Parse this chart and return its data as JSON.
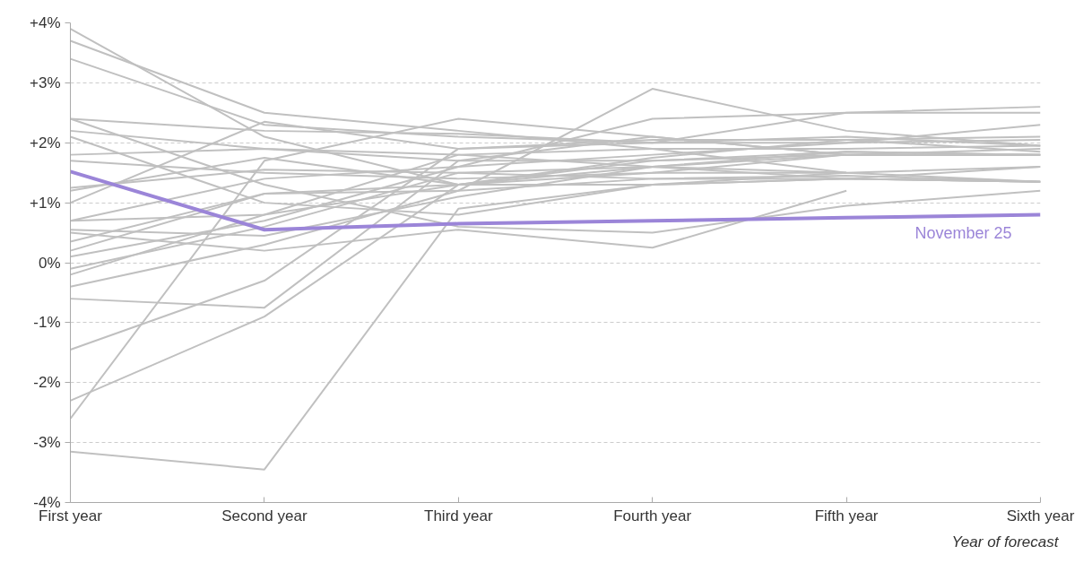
{
  "chart_data": {
    "type": "line",
    "xlabel": "Year of forecast",
    "categories": [
      "First year",
      "Second year",
      "Third year",
      "Fourth year",
      "Fifth year",
      "Sixth year"
    ],
    "ylim": [
      -4,
      4
    ],
    "yticks": [
      {
        "value": 4,
        "label": "+4%"
      },
      {
        "value": 3,
        "label": "+3%"
      },
      {
        "value": 2,
        "label": "+2%"
      },
      {
        "value": 1,
        "label": "+1%"
      },
      {
        "value": 0,
        "label": "0%"
      },
      {
        "value": -1,
        "label": "-1%"
      },
      {
        "value": -2,
        "label": "-2%"
      },
      {
        "value": -3,
        "label": "-3%"
      },
      {
        "value": -4,
        "label": "-4%"
      }
    ],
    "grid": "y",
    "marker": "none",
    "line_style": "solid",
    "series": [
      {
        "color": "#c0c0c0",
        "values": [
          3.9,
          2.1,
          1.3,
          1.6,
          1.8,
          1.8
        ]
      },
      {
        "color": "#c0c0c0",
        "values": [
          3.7,
          2.5,
          2.2,
          1.9,
          1.5,
          1.35
        ]
      },
      {
        "color": "#c0c0c0",
        "values": [
          3.4,
          2.3,
          2.1,
          2.0,
          2.1,
          1.95
        ]
      },
      {
        "color": "#c0c0c0",
        "values": [
          2.4,
          1.3,
          0.6,
          0.5,
          0.95,
          1.2
        ]
      },
      {
        "color": "#c0c0c0",
        "values": [
          2.4,
          2.2,
          2.15,
          2.0,
          2.0,
          2.05
        ]
      },
      {
        "color": "#c0c0c0",
        "values": [
          2.2,
          1.9,
          1.8,
          1.6,
          1.4,
          1.35
        ]
      },
      {
        "color": "#c0c0c0",
        "values": [
          2.1,
          1.0,
          0.8,
          1.3,
          1.4,
          1.6
        ]
      },
      {
        "color": "#c0c0c0",
        "values": [
          1.8,
          1.9,
          1.7,
          1.7,
          1.8,
          1.8
        ]
      },
      {
        "color": "#c0c0c0",
        "values": [
          1.7,
          1.5,
          1.4,
          1.5,
          1.5,
          null
        ]
      },
      {
        "color": "#c0c0c0",
        "values": [
          1.25,
          1.55,
          1.5,
          1.4,
          1.4,
          1.35
        ]
      },
      {
        "color": "#c0c0c0",
        "values": [
          1.2,
          1.75,
          1.3,
          1.3,
          1.4,
          1.35
        ]
      },
      {
        "color": "#c0c0c0",
        "values": [
          1.0,
          2.35,
          1.9,
          2.0,
          2.5,
          2.6
        ]
      },
      {
        "color": "#c0c0c0",
        "values": [
          0.7,
          1.4,
          1.6,
          1.8,
          2.0,
          2.3
        ]
      },
      {
        "color": "#c0c0c0",
        "values": [
          0.7,
          0.8,
          1.3,
          1.5,
          1.8,
          1.8
        ]
      },
      {
        "color": "#c0c0c0",
        "values": [
          0.55,
          0.45,
          1.1,
          1.6,
          1.85,
          1.8
        ]
      },
      {
        "color": "#c0c0c0",
        "values": [
          0.35,
          1.15,
          1.3,
          1.7,
          1.85,
          1.8
        ]
      },
      {
        "color": "#c0c0c0",
        "values": [
          0.2,
          1.15,
          1.2,
          2.9,
          2.2,
          1.95
        ]
      },
      {
        "color": "#c0c0c0",
        "values": [
          0.1,
          0.7,
          1.6,
          2.4,
          2.5,
          2.5
        ]
      },
      {
        "color": "#c0c0c0",
        "values": [
          -0.1,
          0.6,
          1.5,
          1.6,
          1.5,
          null
        ]
      },
      {
        "color": "#c0c0c0",
        "values": [
          -0.2,
          0.8,
          1.8,
          1.9,
          1.9,
          1.95
        ]
      },
      {
        "color": "#c0c0c0",
        "values": [
          -0.4,
          0.3,
          1.2,
          1.4,
          1.45,
          1.35
        ]
      },
      {
        "color": "#c0c0c0",
        "values": [
          -0.6,
          -0.75,
          1.7,
          2.1,
          1.8,
          null
        ]
      },
      {
        "color": "#c0c0c0",
        "values": [
          -1.45,
          -0.3,
          1.9,
          2.05,
          2.05,
          1.85
        ]
      },
      {
        "color": "#c0c0c0",
        "values": [
          -2.3,
          -0.9,
          1.3,
          1.75,
          2.05,
          2.1
        ]
      },
      {
        "color": "#c0c0c0",
        "values": [
          -2.6,
          1.7,
          2.4,
          2.1,
          1.8,
          1.9
        ]
      },
      {
        "color": "#c0c0c0",
        "values": [
          -3.15,
          -3.45,
          0.9,
          1.3,
          1.5,
          1.6
        ]
      },
      {
        "color": "#c0c0c0",
        "values": [
          0.5,
          0.2,
          0.55,
          0.25,
          1.2,
          null
        ]
      },
      {
        "name": "November 25",
        "color": "#9b85d8",
        "values": [
          1.52,
          0.55,
          0.65,
          0.7,
          0.75,
          0.8
        ]
      }
    ]
  }
}
